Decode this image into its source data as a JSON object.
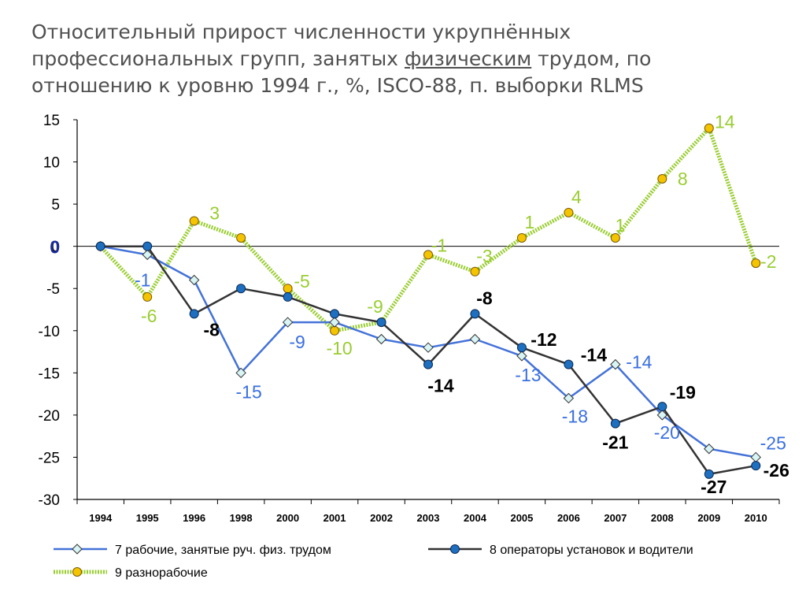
{
  "title": {
    "line1": "Относительный прирост численности укрупнённых",
    "line2_pre": "профессиональных групп, занятых ",
    "line2_u": "физическим",
    "line2_post": " трудом, по",
    "line3": "отношению к уровню 1994 г., %, ISCO-88, п. выборки RLMS"
  },
  "chart_data": {
    "type": "line",
    "categories": [
      "1994",
      "1995",
      "1996",
      "1998",
      "2000",
      "2001",
      "2002",
      "2003",
      "2004",
      "2005",
      "2006",
      "2007",
      "2008",
      "2009",
      "2010"
    ],
    "ylim": [
      -30,
      15
    ],
    "yticks": [
      15,
      10,
      5,
      0,
      -5,
      -10,
      -15,
      -20,
      -25,
      -30
    ],
    "grid": false,
    "legend_position": "bottom",
    "series": [
      {
        "name": "7  рабочие, занятые руч. физ. трудом",
        "values": [
          0,
          -1,
          -4,
          -15,
          -9,
          -9,
          -11,
          -12,
          -11,
          -13,
          -18,
          -14,
          -20,
          -24,
          -25
        ],
        "color": "#4472d8",
        "marker": "diamond",
        "labels": [
          "",
          "-1",
          "",
          "-15",
          "-9",
          "",
          "",
          "",
          "",
          "-13",
          "-18",
          "-14",
          "-20",
          "",
          "-25"
        ]
      },
      {
        "name": "8  операторы установок и водители",
        "values": [
          0,
          0,
          -8,
          -5,
          -6,
          -8,
          -9,
          -14,
          -8,
          -12,
          -14,
          -21,
          -19,
          -27,
          -26
        ],
        "color": "#333333",
        "marker": "circle",
        "labels": [
          "",
          "",
          "-8",
          "",
          "",
          "",
          "",
          "-14",
          "-8",
          "-12",
          "-14",
          "-21",
          "-19",
          "-27",
          "-26"
        ]
      },
      {
        "name": "9  разнорабочие",
        "values": [
          0,
          -6,
          3,
          1,
          -5,
          -10,
          -9,
          -1,
          -3,
          1,
          4,
          1,
          8,
          14,
          -2
        ],
        "color": "#9acd32",
        "marker": "circle",
        "labels": [
          "",
          "-6",
          "3",
          "",
          "-5",
          "-10",
          "-9",
          "-1",
          "-3",
          "1",
          "4",
          "1",
          "8",
          "14",
          "-2"
        ]
      }
    ],
    "zero_label": "0"
  }
}
